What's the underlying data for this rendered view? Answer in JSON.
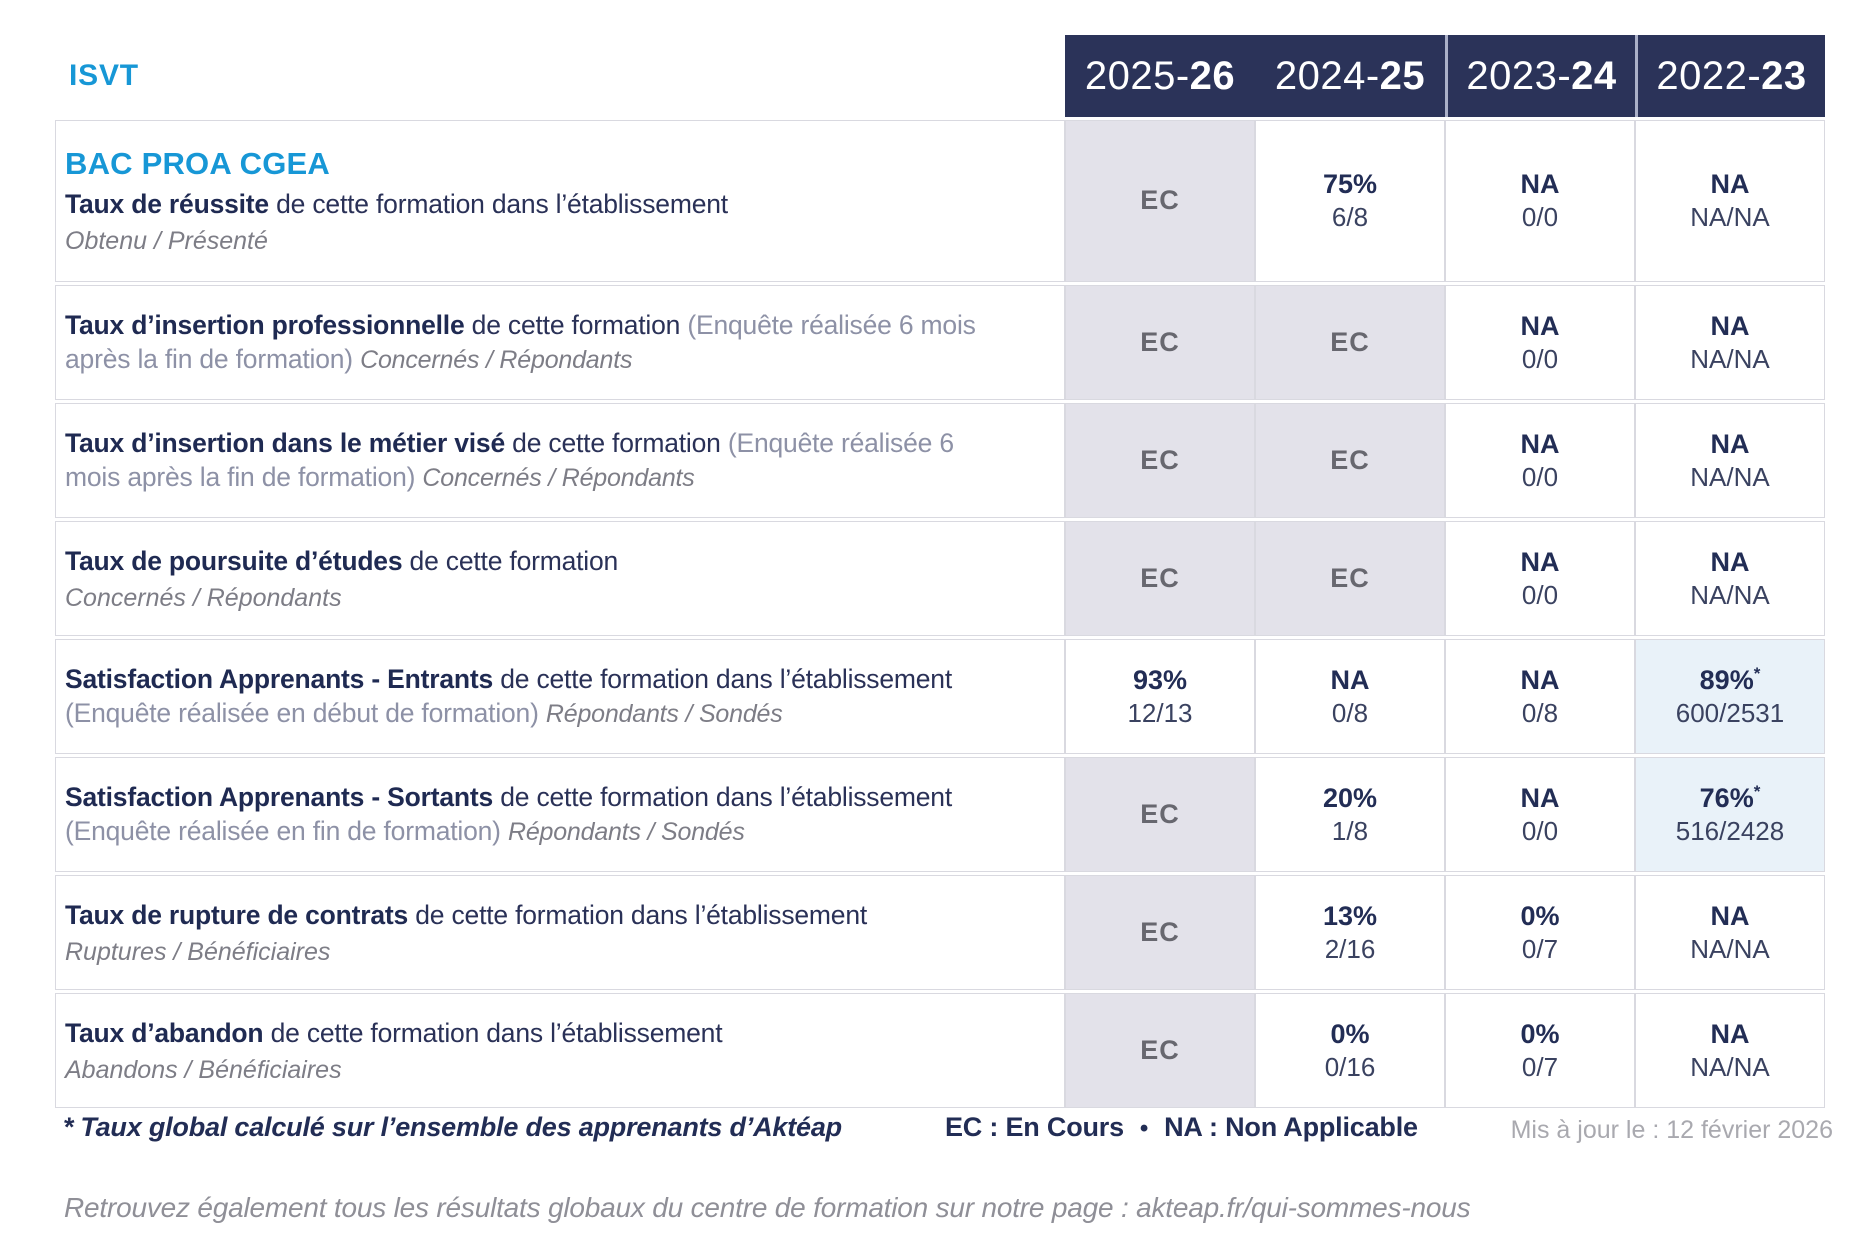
{
  "brand": "ISVT",
  "columns": [
    {
      "prefix": "2025-",
      "bold": "26"
    },
    {
      "prefix": "2024-",
      "bold": "25"
    },
    {
      "prefix": "2023-",
      "bold": "24"
    },
    {
      "prefix": "2022-",
      "bold": "23"
    }
  ],
  "rows": [
    {
      "program": "BAC PROA CGEA",
      "title": "Taux de réussite",
      "desc": " de cette formation dans l’établissement",
      "sub": "Obtenu / Présenté",
      "sub_block": true,
      "values": [
        {
          "main": "EC",
          "ec": true
        },
        {
          "main": "75%",
          "sub": "6/8"
        },
        {
          "main": "NA",
          "sub": "0/0"
        },
        {
          "main": "NA",
          "sub": "NA/NA"
        }
      ]
    },
    {
      "title": "Taux d’insertion professionnelle",
      "desc": " de cette formation ",
      "paren": "(Enquête réalisée 6 mois après la fin de formation) ",
      "sub": "Concernés / Répondants",
      "sub_block": false,
      "values": [
        {
          "main": "EC",
          "ec": true
        },
        {
          "main": "EC",
          "ec": true
        },
        {
          "main": "NA",
          "sub": "0/0"
        },
        {
          "main": "NA",
          "sub": "NA/NA"
        }
      ]
    },
    {
      "title": "Taux d’insertion dans le métier visé",
      "desc": " de cette formation ",
      "paren": "(Enquête réalisée 6 mois après la fin de formation) ",
      "sub": "Concernés / Répondants",
      "sub_block": false,
      "values": [
        {
          "main": "EC",
          "ec": true
        },
        {
          "main": "EC",
          "ec": true
        },
        {
          "main": "NA",
          "sub": "0/0"
        },
        {
          "main": "NA",
          "sub": "NA/NA"
        }
      ]
    },
    {
      "title": "Taux de poursuite d’études",
      "desc": " de cette formation",
      "sub": "Concernés / Répondants",
      "sub_block": true,
      "values": [
        {
          "main": "EC",
          "ec": true
        },
        {
          "main": "EC",
          "ec": true
        },
        {
          "main": "NA",
          "sub": "0/0"
        },
        {
          "main": "NA",
          "sub": "NA/NA"
        }
      ]
    },
    {
      "title": "Satisfaction Apprenants - Entrants",
      "desc": " de cette formation dans l’établissement ",
      "paren": "(Enquête réalisée en début de formation) ",
      "sub": "Répondants / Sondés",
      "sub_block": false,
      "values": [
        {
          "main": "93%",
          "sub": "12/13"
        },
        {
          "main": "NA",
          "sub": "0/8"
        },
        {
          "main": "NA",
          "sub": "0/8"
        },
        {
          "main": "89%",
          "star": "*",
          "sub": "600/2531",
          "hl": true
        }
      ]
    },
    {
      "title": "Satisfaction Apprenants - Sortants",
      "desc": " de cette formation dans l’établissement ",
      "paren": "(Enquête réalisée en fin de formation) ",
      "sub": "Répondants / Sondés",
      "sub_block": false,
      "values": [
        {
          "main": "EC",
          "ec": true
        },
        {
          "main": "20%",
          "sub": "1/8"
        },
        {
          "main": "NA",
          "sub": "0/0"
        },
        {
          "main": "76%",
          "star": "*",
          "sub": "516/2428",
          "hl": true
        }
      ]
    },
    {
      "title": "Taux de rupture de contrats",
      "desc": " de cette formation dans l’établissement",
      "sub": "Ruptures / Bénéficiaires",
      "sub_block": true,
      "values": [
        {
          "main": "EC",
          "ec": true
        },
        {
          "main": "13%",
          "sub": "2/16"
        },
        {
          "main": "0%",
          "sub": "0/7"
        },
        {
          "main": "NA",
          "sub": "NA/NA"
        }
      ]
    },
    {
      "title": "Taux d’abandon",
      "desc": " de cette formation dans l’établissement",
      "sub": "Abandons / Bénéficiaires",
      "sub_block": true,
      "values": [
        {
          "main": "EC",
          "ec": true
        },
        {
          "main": "0%",
          "sub": "0/16"
        },
        {
          "main": "0%",
          "sub": "0/7"
        },
        {
          "main": "NA",
          "sub": "NA/NA"
        }
      ]
    }
  ],
  "footer": {
    "star": "*",
    "star_note": "Taux global calculé sur l’ensemble des apprenants d’Aktéap",
    "legend_ec": "EC : En Cours",
    "legend_sep": "•",
    "legend_na": "NA : Non Applicable",
    "updated": "Mis à jour le : 12 février 2026"
  },
  "bottom_note": "Retrouvez également tous les résultats globaux du centre de formation sur notre page : akteap.fr/qui-sommes-nous",
  "colors": {
    "header_navy": "#2b3359",
    "brand_blue": "#1797d6",
    "text_navy": "#222d55",
    "ec_cell_bg": "#e3e2ea",
    "highlight_cell_bg": "#e9f2f9",
    "cell_border": "#d9d9e0",
    "gray_text": "#7d7d86",
    "updated_gray": "#a9a9af"
  }
}
